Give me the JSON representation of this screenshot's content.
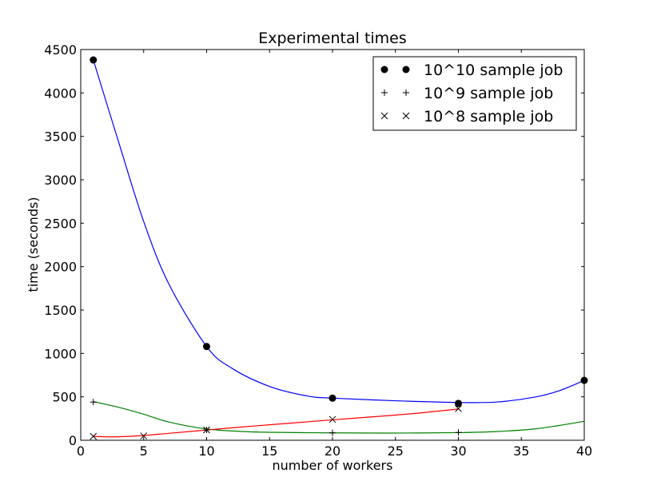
{
  "chart_data": {
    "type": "line",
    "title": "Experimental times",
    "xlabel": "number of workers",
    "ylabel": "time (seconds)",
    "xlim": [
      0,
      40
    ],
    "ylim": [
      0,
      4500
    ],
    "xticks": [
      0,
      5,
      10,
      15,
      20,
      25,
      30,
      35,
      40
    ],
    "yticks": [
      0,
      500,
      1000,
      1500,
      2000,
      2500,
      3000,
      3500,
      4000,
      4500
    ],
    "grid": false,
    "legend_position": "top-right",
    "series": [
      {
        "name": "10^10 sample job",
        "marker": "circle",
        "points": [
          [
            1,
            4380
          ],
          [
            10,
            1080
          ],
          [
            20,
            485
          ],
          [
            30,
            425
          ],
          [
            40,
            690
          ]
        ],
        "fit_color": "#0000ff",
        "fit_curve": [
          [
            1,
            4380
          ],
          [
            3,
            3440
          ],
          [
            5,
            2520
          ],
          [
            7,
            1800
          ],
          [
            10,
            1080
          ],
          [
            12,
            830
          ],
          [
            15,
            620
          ],
          [
            18,
            510
          ],
          [
            20,
            485
          ],
          [
            25,
            455
          ],
          [
            30,
            435
          ],
          [
            33,
            440
          ],
          [
            36,
            495
          ],
          [
            38,
            570
          ],
          [
            40,
            690
          ]
        ]
      },
      {
        "name": "10^9 sample job",
        "marker": "plus",
        "points": [
          [
            1,
            440
          ],
          [
            10,
            120
          ],
          [
            20,
            85
          ],
          [
            30,
            90
          ]
        ],
        "fit_color": "#008000",
        "fit_curve": [
          [
            1,
            445
          ],
          [
            3,
            380
          ],
          [
            5,
            300
          ],
          [
            7,
            210
          ],
          [
            10,
            130
          ],
          [
            13,
            100
          ],
          [
            15,
            92
          ],
          [
            20,
            85
          ],
          [
            25,
            83
          ],
          [
            30,
            88
          ],
          [
            33,
            100
          ],
          [
            36,
            130
          ],
          [
            38,
            170
          ],
          [
            40,
            218
          ]
        ]
      },
      {
        "name": "10^8 sample job",
        "marker": "x",
        "points": [
          [
            1,
            45
          ],
          [
            5,
            50
          ],
          [
            10,
            120
          ],
          [
            20,
            240
          ],
          [
            30,
            365
          ]
        ],
        "fit_color": "#ff0000",
        "fit_curve": [
          [
            1,
            45
          ],
          [
            2,
            40
          ],
          [
            3,
            40
          ],
          [
            5,
            55
          ],
          [
            7,
            80
          ],
          [
            10,
            118
          ],
          [
            13,
            155
          ],
          [
            15,
            178
          ],
          [
            20,
            235
          ],
          [
            25,
            290
          ],
          [
            28,
            330
          ],
          [
            30,
            360
          ]
        ]
      }
    ]
  }
}
